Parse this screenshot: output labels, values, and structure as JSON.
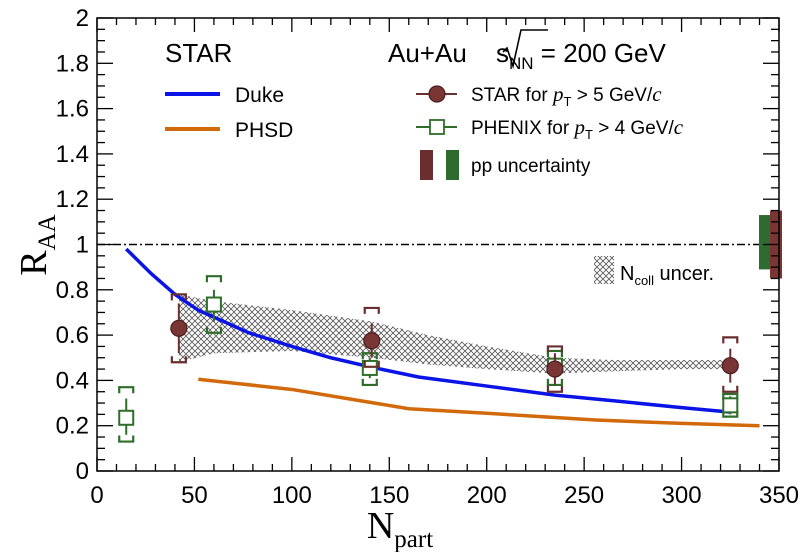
{
  "chart_data": {
    "type": "line",
    "title": "",
    "xlabel_main": "N",
    "xlabel_sub": "part",
    "ylabel_main": "R",
    "ylabel_sub": "AA",
    "xlim": [
      0,
      350
    ],
    "ylim": [
      0,
      2
    ],
    "xticks": [
      0,
      50,
      100,
      150,
      200,
      250,
      300,
      350
    ],
    "yticks": [
      0,
      0.2,
      0.4,
      0.6,
      0.8,
      1,
      1.2,
      1.4,
      1.6,
      1.8,
      2
    ],
    "ytick_labels": [
      "0",
      "0.2",
      "0.4",
      "0.6",
      "0.8",
      "1",
      "1.2",
      "1.4",
      "1.6",
      "1.8",
      "2"
    ],
    "reference_line": 1,
    "colors": {
      "duke": "#0a14e6",
      "phsd": "#d2690a",
      "star": "#6b2e2e",
      "star_fill": "#7a3535",
      "phenix": "#2f6e2a",
      "phenix_fill": "#2e6b2e",
      "band": "#555555"
    },
    "series": [
      {
        "name": "Duke",
        "type": "line",
        "x": [
          15,
          28,
          40,
          52,
          65,
          78,
          100,
          120,
          140,
          165,
          200,
          235,
          265,
          300,
          325
        ],
        "y": [
          0.98,
          0.87,
          0.78,
          0.71,
          0.66,
          0.61,
          0.55,
          0.5,
          0.46,
          0.415,
          0.375,
          0.335,
          0.31,
          0.28,
          0.26
        ]
      },
      {
        "name": "PHSD",
        "type": "line",
        "x": [
          52,
          100,
          160,
          200,
          256,
          300,
          340
        ],
        "y": [
          0.405,
          0.36,
          0.275,
          0.255,
          0.225,
          0.21,
          0.2
        ]
      },
      {
        "name": "STAR for p_T > 5 GeV/c",
        "type": "scatter",
        "points": [
          {
            "x": 42,
            "y": 0.63,
            "stat_lo": 0.52,
            "stat_hi": 0.74,
            "sys_lo": 0.48,
            "sys_hi": 0.78
          },
          {
            "x": 141,
            "y": 0.575,
            "stat_lo": 0.5,
            "stat_hi": 0.65,
            "sys_lo": 0.46,
            "sys_hi": 0.72
          },
          {
            "x": 235,
            "y": 0.45,
            "stat_lo": 0.38,
            "stat_hi": 0.52,
            "sys_lo": 0.35,
            "sys_hi": 0.55
          },
          {
            "x": 325,
            "y": 0.465,
            "stat_lo": 0.39,
            "stat_hi": 0.54,
            "sys_lo": 0.35,
            "sys_hi": 0.59
          }
        ]
      },
      {
        "name": "PHENIX for p_T > 4 GeV/c",
        "type": "scatter",
        "points": [
          {
            "x": 15,
            "y": 0.235,
            "stat_lo": 0.16,
            "stat_hi": 0.32,
            "sys_lo": 0.13,
            "sys_hi": 0.37
          },
          {
            "x": 60,
            "y": 0.735,
            "stat_lo": 0.66,
            "stat_hi": 0.8,
            "sys_lo": 0.61,
            "sys_hi": 0.86
          },
          {
            "x": 140,
            "y": 0.455,
            "stat_lo": 0.41,
            "stat_hi": 0.5,
            "sys_lo": 0.38,
            "sys_hi": 0.52
          },
          {
            "x": 235,
            "y": 0.465,
            "stat_lo": 0.42,
            "stat_hi": 0.51,
            "sys_lo": 0.38,
            "sys_hi": 0.53
          },
          {
            "x": 325,
            "y": 0.29,
            "stat_lo": 0.25,
            "stat_hi": 0.33,
            "sys_lo": 0.24,
            "sys_hi": 0.34
          }
        ]
      }
    ],
    "ncoll_band": {
      "name": "N_coll uncer.",
      "x": [
        42,
        60,
        100,
        141,
        170,
        200,
        235,
        265,
        300,
        325
      ],
      "upper": [
        0.78,
        0.75,
        0.71,
        0.66,
        0.6,
        0.55,
        0.5,
        0.49,
        0.49,
        0.49
      ],
      "lower": [
        0.48,
        0.52,
        0.53,
        0.5,
        0.47,
        0.45,
        0.43,
        0.44,
        0.45,
        0.45
      ]
    },
    "pp_uncertainty": {
      "name": "pp uncertainty",
      "star": [
        0.85,
        1.15
      ],
      "phenix": [
        0.89,
        1.13
      ]
    },
    "labels": {
      "experiment": "STAR",
      "system_prefix": "Au+Au ",
      "system_sqrt": "s",
      "system_sub": "NN",
      "system_suffix": " = 200 GeV",
      "star_prefix": "STAR for ",
      "phenix_prefix": "PHENIX for ",
      "pt_symbol": "p",
      "pt_sub": "T",
      "star_threshold": " > 5 GeV/",
      "phenix_threshold": " > 4 GeV/",
      "c_unit": "c",
      "ncoll_main": "N",
      "ncoll_sub": "coll",
      "ncoll_suffix": " uncer.",
      "duke": "Duke",
      "phsd": "PHSD",
      "pp": "pp uncertainty"
    }
  }
}
